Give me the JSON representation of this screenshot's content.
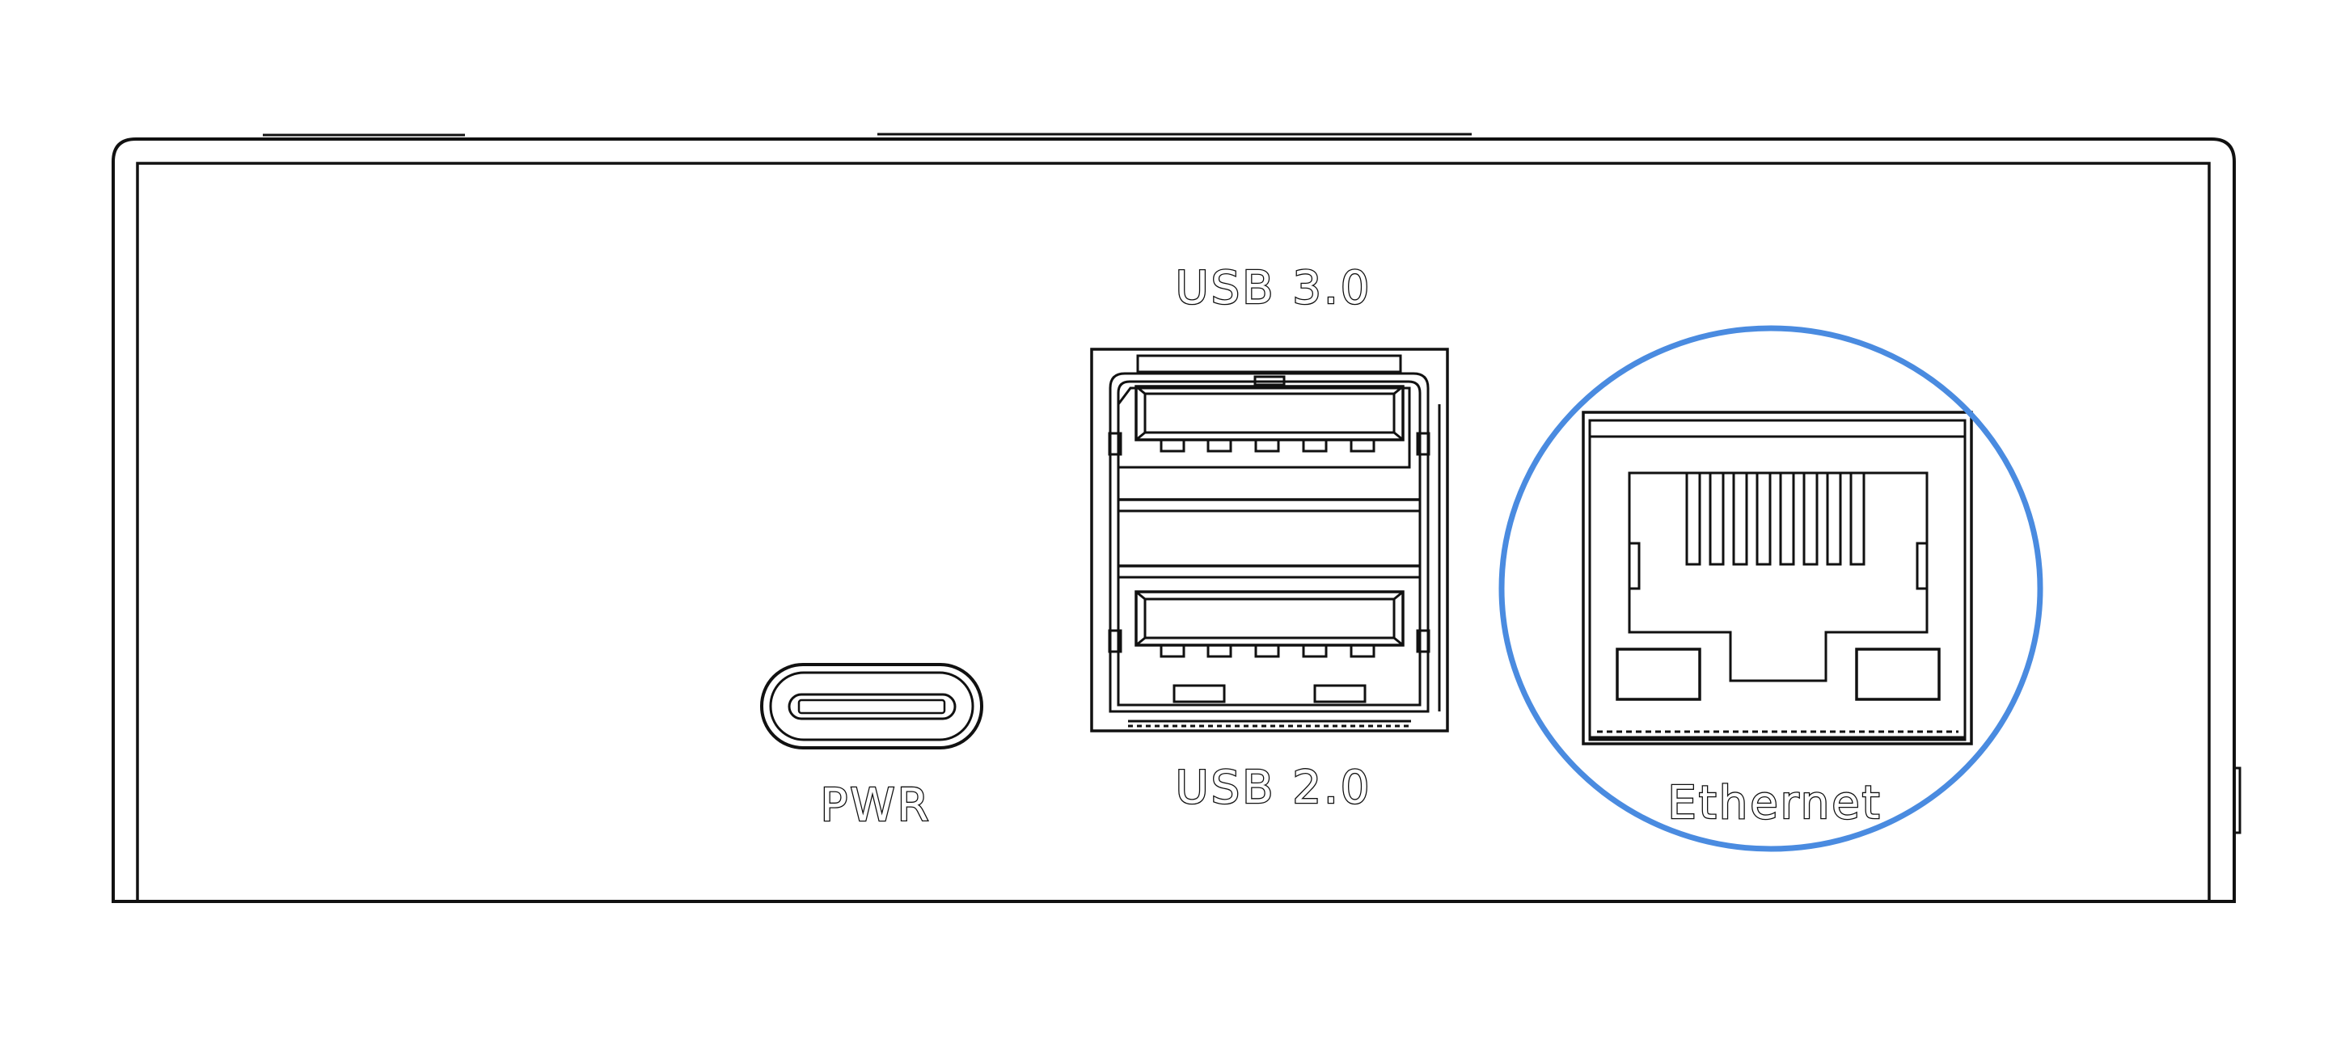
{
  "labels": {
    "usb3": "USB 3.0",
    "usb2": "USB 2.0",
    "power": "PWR",
    "ethernet": "Ethernet"
  },
  "colors": {
    "line": "#111111",
    "highlight": "#4a8be0",
    "background": "#ffffff"
  },
  "highlighted_port": "ethernet"
}
